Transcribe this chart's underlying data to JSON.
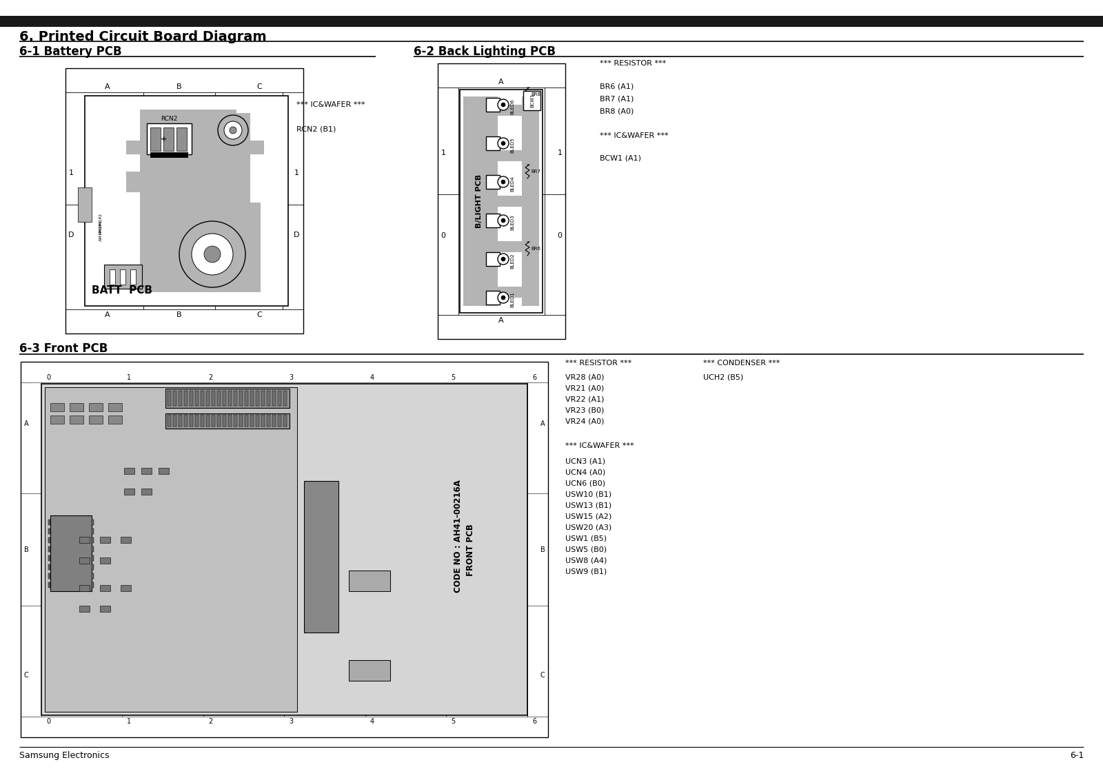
{
  "page_title": "6. Printed Circuit Board Diagram",
  "section1_title": "6-1 Battery PCB",
  "section2_title": "6-2 Back Lighting PCB",
  "section3_title": "6-3 Front PCB",
  "footer_left": "Samsung Electronics",
  "footer_right": "6-1",
  "bg_color": "#ffffff",
  "header_bar_color": "#1a1a1a",
  "batt_icwafer_label": "*** IC&WAFER ***",
  "batt_connector_label": "RCN2 (B1)",
  "bl_resistor_label": "*** RESISTOR ***",
  "bl_resistor_items": [
    "BR6 (A1)",
    "BR7 (A1)",
    "BR8 (A0)"
  ],
  "bl_icwafer_label": "*** IC&WAFER ***",
  "bl_icwafer_items": [
    "BCW1 (A1)"
  ],
  "front_resistor_label": "*** RESISTOR ***",
  "front_resistor_items": [
    "VR28 (A0)",
    "VR21 (A0)",
    "VR22 (A1)",
    "VR23 (B0)",
    "VR24 (A0)"
  ],
  "front_condenser_label": "*** CONDENSER ***",
  "front_condenser_items": [
    "UCH2 (B5)"
  ],
  "front_icwafer_label": "*** IC&WAFER ***",
  "front_icwafer_items": [
    "UCN3 (A1)",
    "UCN4 (A0)",
    "UCN6 (B0)",
    "USW10 (B1)",
    "USW13 (B1)",
    "USW15 (A2)",
    "USW20 (A3)",
    "USW1 (B5)",
    "USW5 (B0)",
    "USW8 (A4)",
    "USW9 (B1)"
  ],
  "front_code_line1": "CODE NO : AH41-00216A",
  "front_code_line2": "FRONT PCB",
  "gray_pcb": "#b4b4b4",
  "gray_light": "#c8c8c8",
  "gray_dark": "#909090",
  "gray_trace": "#a0a0a0"
}
